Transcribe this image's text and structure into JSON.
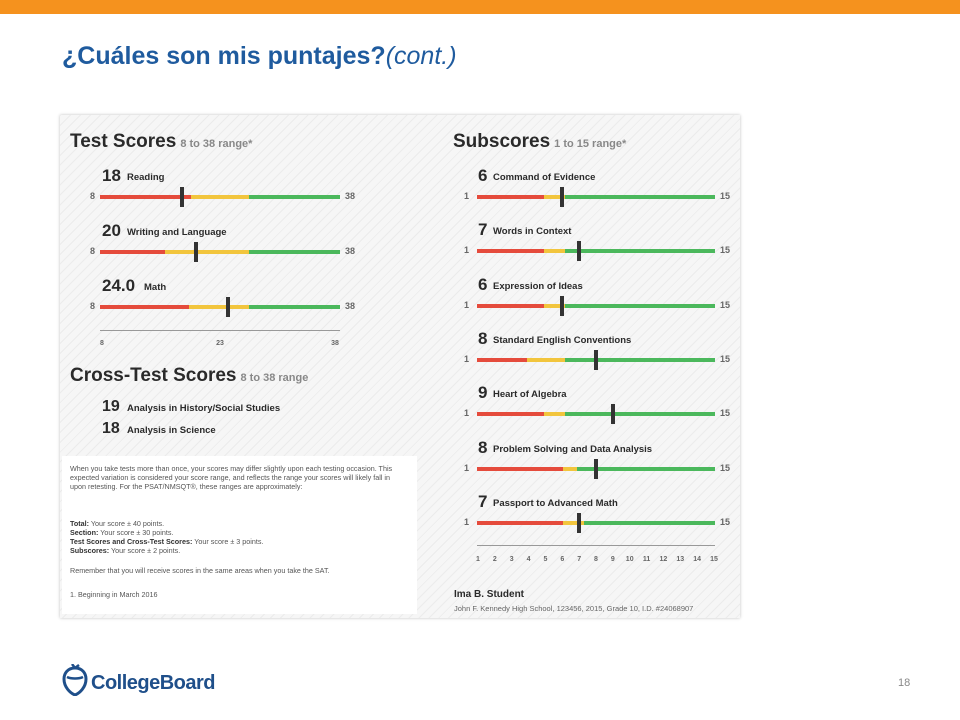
{
  "slide": {
    "title": "¿Cuáles son mis puntajes?",
    "title_suffix": "(cont.)",
    "page_number": "18",
    "logo_text": "CollegeBoard",
    "colors": {
      "accent": "#f5921e",
      "title": "#1f5b9e",
      "red": "#e54b3c",
      "yellow": "#f2c53d",
      "green": "#4bb85c"
    }
  },
  "test_scores": {
    "title": "Test Scores",
    "range": "8 to 38 range*",
    "min_label": "8",
    "max_label": "38",
    "items": [
      {
        "score": "18",
        "name": "Reading",
        "value": 18,
        "low": 8,
        "mid": 23
      },
      {
        "score": "20",
        "name": "Writing and Language",
        "value": 20,
        "low": 8,
        "mid": 23
      },
      {
        "score": "24.0",
        "name": "Math",
        "value": 24,
        "low": 8,
        "mid": 23
      }
    ],
    "axis_ticks": [
      "8",
      "23",
      "38"
    ]
  },
  "cross_test": {
    "title": "Cross-Test Scores",
    "range": "8 to 38 range",
    "items": [
      {
        "score": "19",
        "name": "Analysis in History/Social Studies"
      },
      {
        "score": "18",
        "name": "Analysis in Science"
      }
    ]
  },
  "notes": {
    "intro": "When you take tests more than once, your scores may differ slightly upon each testing occasion. This expected variation is considered your score range, and reflects the range your scores will likely fall in upon retesting. For the PSAT/NMSQT®, these ranges are approximately:",
    "total_label": "Total:",
    "total_text": "Your score ± 40 points.",
    "section_label": "Section:",
    "section_text": "Your score ± 30 points.",
    "tests_label": "Test Scores and Cross-Test Scores:",
    "tests_text": "Your score ± 3 points.",
    "subscores_label": "Subscores:",
    "subscores_text": "Your score ± 2 points.",
    "remember": "Remember that you will receive scores in the same areas when you take the SAT.",
    "footnote": "1. Beginning in March 2016"
  },
  "subscores": {
    "title": "Subscores",
    "range": "1 to 15 range*",
    "min_label": "1",
    "max_label": "15",
    "items": [
      {
        "score": "6",
        "name": "Command of Evidence",
        "value": 6
      },
      {
        "score": "7",
        "name": "Words in Context",
        "value": 7
      },
      {
        "score": "6",
        "name": "Expression of Ideas",
        "value": 6
      },
      {
        "score": "8",
        "name": "Standard English Conventions",
        "value": 8
      },
      {
        "score": "9",
        "name": "Heart of Algebra",
        "value": 9
      },
      {
        "score": "8",
        "name": "Problem Solving and Data Analysis",
        "value": 8
      },
      {
        "score": "7",
        "name": "Passport to Advanced Math",
        "value": 7
      }
    ],
    "axis_ticks": [
      "1",
      "2",
      "3",
      "4",
      "5",
      "6",
      "7",
      "8",
      "9",
      "10",
      "11",
      "12",
      "13",
      "14",
      "15"
    ]
  },
  "student": {
    "name": "Ima B. Student",
    "info": "John F. Kennedy High School, 123456, 2015, Grade 10, I.D. #24068907"
  }
}
